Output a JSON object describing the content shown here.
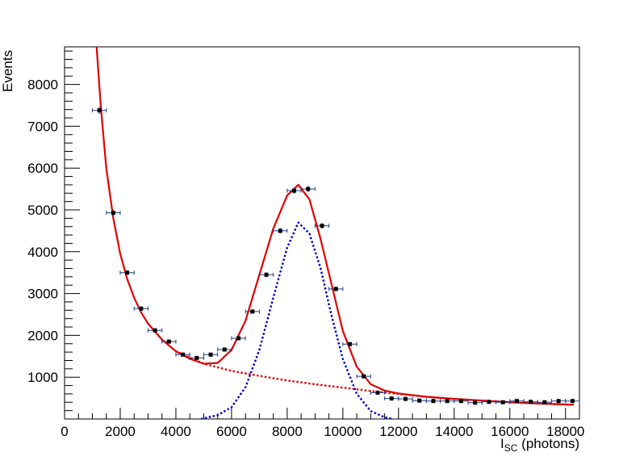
{
  "chart_data": {
    "type": "scatter",
    "xlabel_main": "I",
    "xlabel_sub": "SC",
    "xlabel_rest": " (photons)",
    "ylabel": "Events",
    "xlim": [
      0,
      18500
    ],
    "ylim": [
      0,
      8900
    ],
    "x_ticks": [
      0,
      2000,
      4000,
      6000,
      8000,
      10000,
      12000,
      14000,
      16000,
      18000
    ],
    "y_ticks": [
      1000,
      2000,
      3000,
      4000,
      5000,
      6000,
      7000,
      8000
    ],
    "bin_half_width": 250,
    "points": [
      {
        "x": 1250,
        "y": 7380,
        "yerr": 90
      },
      {
        "x": 1750,
        "y": 4930,
        "yerr": 70
      },
      {
        "x": 2250,
        "y": 3500,
        "yerr": 60
      },
      {
        "x": 2750,
        "y": 2640,
        "yerr": 50
      },
      {
        "x": 3250,
        "y": 2120,
        "yerr": 45
      },
      {
        "x": 3750,
        "y": 1850,
        "yerr": 45
      },
      {
        "x": 4250,
        "y": 1540,
        "yerr": 40
      },
      {
        "x": 4750,
        "y": 1460,
        "yerr": 40
      },
      {
        "x": 5250,
        "y": 1540,
        "yerr": 40
      },
      {
        "x": 5750,
        "y": 1660,
        "yerr": 40
      },
      {
        "x": 6250,
        "y": 1930,
        "yerr": 45
      },
      {
        "x": 6750,
        "y": 2570,
        "yerr": 50
      },
      {
        "x": 7250,
        "y": 3450,
        "yerr": 60
      },
      {
        "x": 7750,
        "y": 4500,
        "yerr": 65
      },
      {
        "x": 8250,
        "y": 5460,
        "yerr": 75
      },
      {
        "x": 8750,
        "y": 5500,
        "yerr": 75
      },
      {
        "x": 9250,
        "y": 4620,
        "yerr": 70
      },
      {
        "x": 9750,
        "y": 3110,
        "yerr": 55
      },
      {
        "x": 10250,
        "y": 1790,
        "yerr": 45
      },
      {
        "x": 10750,
        "y": 1020,
        "yerr": 35
      },
      {
        "x": 11250,
        "y": 630,
        "yerr": 25
      },
      {
        "x": 11750,
        "y": 490,
        "yerr": 22
      },
      {
        "x": 12250,
        "y": 480,
        "yerr": 22
      },
      {
        "x": 12750,
        "y": 440,
        "yerr": 21
      },
      {
        "x": 13250,
        "y": 430,
        "yerr": 21
      },
      {
        "x": 13750,
        "y": 430,
        "yerr": 21
      },
      {
        "x": 14250,
        "y": 430,
        "yerr": 21
      },
      {
        "x": 14750,
        "y": 390,
        "yerr": 20
      },
      {
        "x": 15250,
        "y": 410,
        "yerr": 20
      },
      {
        "x": 15750,
        "y": 400,
        "yerr": 20
      },
      {
        "x": 16250,
        "y": 430,
        "yerr": 21
      },
      {
        "x": 16750,
        "y": 410,
        "yerr": 20
      },
      {
        "x": 17250,
        "y": 400,
        "yerr": 20
      },
      {
        "x": 17750,
        "y": 430,
        "yerr": 21
      },
      {
        "x": 18250,
        "y": 430,
        "yerr": 21
      }
    ],
    "fit_curves": [
      {
        "style": "solid",
        "color": "#e00000",
        "x": [
          1150,
          1300,
          1500,
          1750,
          2000,
          2250,
          2500,
          2750,
          3000,
          3500,
          4000,
          4500,
          5000,
          5500,
          6000,
          6500,
          7000,
          7500,
          8000,
          8400,
          8800,
          9200,
          9600,
          10000,
          10500,
          11000,
          11500,
          12000,
          13000,
          14000,
          15000,
          16000,
          17000,
          18300
        ],
        "y": [
          8900,
          7500,
          6000,
          4800,
          3950,
          3350,
          2900,
          2550,
          2280,
          1900,
          1620,
          1440,
          1320,
          1340,
          1650,
          2350,
          3450,
          4550,
          5350,
          5600,
          5250,
          4300,
          3200,
          2100,
          1250,
          830,
          680,
          610,
          530,
          480,
          440,
          400,
          370,
          340
        ]
      },
      {
        "style": "dotted",
        "color": "#e00000",
        "x": [
          4000,
          5000,
          6000,
          7000,
          8000,
          9000,
          10000,
          11000,
          12000,
          13000,
          14000,
          15000,
          16000,
          17000,
          18300
        ],
        "y": [
          1620,
          1320,
          1150,
          1030,
          920,
          830,
          750,
          670,
          600,
          530,
          480,
          440,
          400,
          370,
          340
        ]
      },
      {
        "style": "dotted",
        "color": "#0000cc",
        "x": [
          4900,
          5500,
          6000,
          6500,
          7000,
          7500,
          8000,
          8400,
          8800,
          9200,
          9600,
          10000,
          10500,
          11000,
          11500,
          11800
        ],
        "y": [
          0,
          90,
          280,
          760,
          1650,
          2900,
          4100,
          4700,
          4430,
          3600,
          2450,
          1430,
          600,
          190,
          40,
          0
        ]
      }
    ]
  }
}
